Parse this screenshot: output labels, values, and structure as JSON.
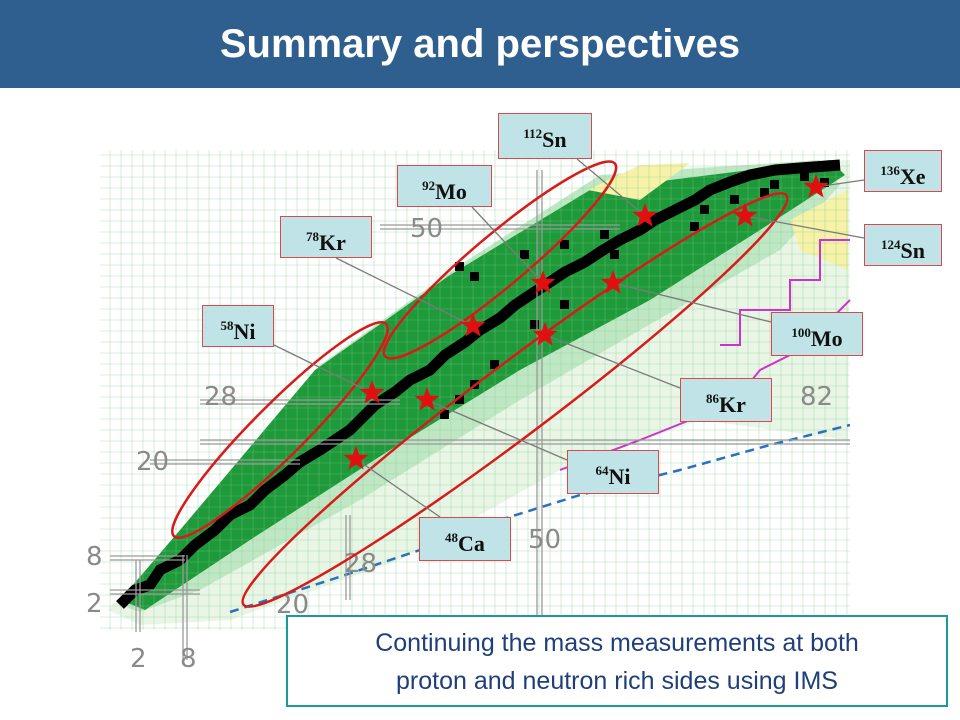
{
  "title": "Summary and perspectives",
  "chart": {
    "proton_magic": [
      "2",
      "8",
      "20",
      "28",
      "50",
      "82"
    ],
    "neutron_magic": [
      "2",
      "8",
      "20",
      "28",
      "50",
      "82"
    ]
  },
  "nuclides": [
    {
      "id": "ni58",
      "mass": "58",
      "symbol": "Ni"
    },
    {
      "id": "kr78",
      "mass": "78",
      "symbol": "Kr"
    },
    {
      "id": "mo92",
      "mass": "92",
      "symbol": "Mo"
    },
    {
      "id": "sn112",
      "mass": "112",
      "symbol": "Sn"
    },
    {
      "id": "xe136",
      "mass": "136",
      "symbol": "Xe"
    },
    {
      "id": "sn124",
      "mass": "124",
      "symbol": "Sn"
    },
    {
      "id": "mo100",
      "mass": "100",
      "symbol": "Mo"
    },
    {
      "id": "kr86",
      "mass": "86",
      "symbol": "Kr"
    },
    {
      "id": "ni64",
      "mass": "64",
      "symbol": "Ni"
    },
    {
      "id": "ca48",
      "mass": "48",
      "symbol": "Ca"
    }
  ],
  "caption": {
    "line1": "Continuing the mass measurements at both",
    "line2": "proton and neutron rich sides using IMS"
  },
  "colors": {
    "header": "#2e5f8e",
    "stable": "#000000",
    "known": "#1f9a3a",
    "light": "#cdeccd",
    "star": "#e01010",
    "ellipse": "#d91a1a",
    "caption_border": "#1a9b98",
    "caption_text": "#1f3f7a"
  }
}
